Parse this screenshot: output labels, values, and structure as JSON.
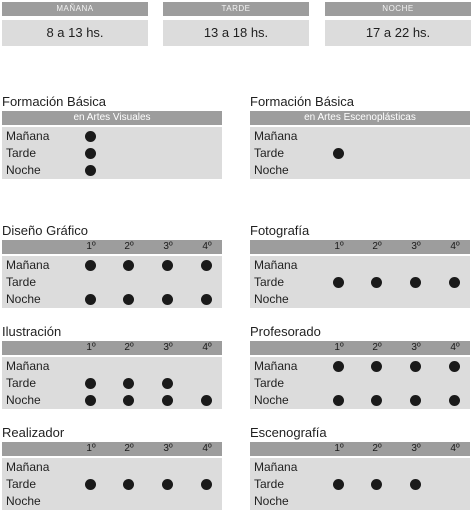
{
  "shifts": [
    {
      "name": "MAÑANA",
      "hours": "8 a 13 hs."
    },
    {
      "name": "TARDE",
      "hours": "13 a 18 hs."
    },
    {
      "name": "NOCHE",
      "hours": "17 a 22 hs."
    }
  ],
  "row_labels": [
    "Mañana",
    "Tarde",
    "Noche"
  ],
  "years": [
    "1º",
    "2º",
    "3º",
    "4º"
  ],
  "basic": [
    {
      "title": "Formación Básica",
      "subtitle": "en Artes Visuales",
      "schedule": [
        [
          1
        ],
        [
          1
        ],
        [
          1
        ]
      ]
    },
    {
      "title": "Formación Básica",
      "subtitle": "en Artes Escenoplásticas",
      "schedule": [
        [
          0
        ],
        [
          1
        ],
        [
          0
        ]
      ]
    }
  ],
  "careers": [
    {
      "title": "Diseño Gráfico",
      "schedule": [
        [
          1,
          1,
          1,
          1
        ],
        [
          0,
          0,
          0,
          0
        ],
        [
          1,
          1,
          1,
          1
        ]
      ]
    },
    {
      "title": "Fotografía",
      "schedule": [
        [
          0,
          0,
          0,
          0
        ],
        [
          1,
          1,
          1,
          1
        ],
        [
          0,
          0,
          0,
          0
        ]
      ]
    },
    {
      "title": "Ilustración",
      "schedule": [
        [
          0,
          0,
          0,
          0
        ],
        [
          1,
          1,
          1,
          0
        ],
        [
          1,
          1,
          1,
          1
        ]
      ]
    },
    {
      "title": "Profesorado",
      "schedule": [
        [
          1,
          1,
          1,
          1
        ],
        [
          0,
          0,
          0,
          0
        ],
        [
          1,
          1,
          1,
          1
        ]
      ]
    },
    {
      "title": "Realizador",
      "schedule": [
        [
          0,
          0,
          0,
          0
        ],
        [
          1,
          1,
          1,
          1
        ],
        [
          0,
          0,
          0,
          0
        ]
      ]
    },
    {
      "title": "Escenografía",
      "schedule": [
        [
          0,
          0,
          0,
          0
        ],
        [
          1,
          1,
          1,
          0
        ],
        [
          0,
          0,
          0,
          0
        ]
      ]
    }
  ]
}
